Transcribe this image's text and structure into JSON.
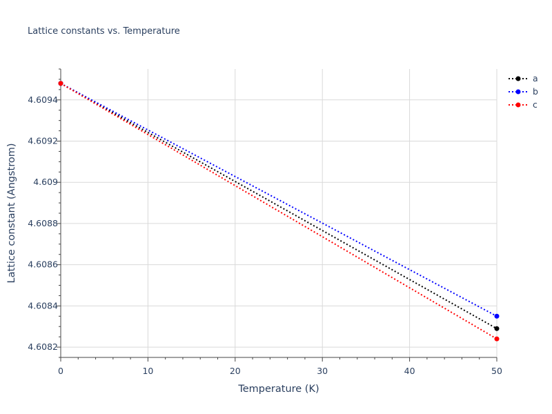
{
  "chart_data": {
    "type": "line",
    "title": "Lattice constants vs. Temperature",
    "xlabel": "Temperature (K)",
    "ylabel": "Lattice constant (Angstrom)",
    "xlim": [
      0,
      50
    ],
    "ylim": [
      4.60815,
      4.60955
    ],
    "x_ticks": [
      0,
      10,
      20,
      30,
      40,
      50
    ],
    "x_tick_labels": [
      "0",
      "10",
      "20",
      "30",
      "40",
      "50"
    ],
    "y_ticks": [
      4.6082,
      4.6084,
      4.6086,
      4.6088,
      4.609,
      4.6092,
      4.6094
    ],
    "y_tick_labels": [
      "4.6082",
      "4.6084",
      "4.6086",
      "4.6088",
      "4.609",
      "4.6092",
      "4.6094"
    ],
    "grid": true,
    "legend_position": "top-right",
    "series": [
      {
        "name": "a",
        "color": "#000000",
        "x": [
          0,
          50
        ],
        "y": [
          4.60948,
          4.60829
        ]
      },
      {
        "name": "b",
        "color": "#0000ff",
        "x": [
          0,
          50
        ],
        "y": [
          4.60948,
          4.60835
        ]
      },
      {
        "name": "c",
        "color": "#ff0000",
        "x": [
          0,
          50
        ],
        "y": [
          4.60948,
          4.60824
        ]
      }
    ]
  }
}
